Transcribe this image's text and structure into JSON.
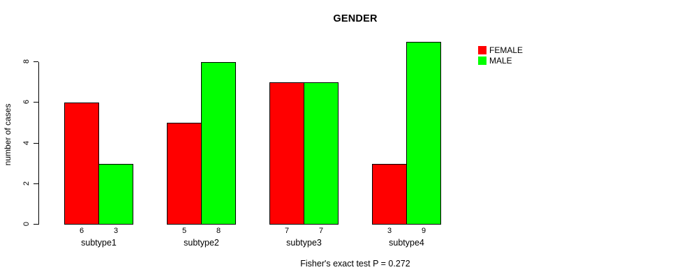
{
  "chart_data": {
    "type": "bar",
    "title": "GENDER",
    "xlabel": "",
    "ylabel": "number of cases",
    "categories": [
      "subtype1",
      "subtype2",
      "subtype3",
      "subtype4"
    ],
    "series": [
      {
        "name": "FEMALE",
        "color": "#ff0000",
        "values": [
          6,
          5,
          7,
          3
        ]
      },
      {
        "name": "MALE",
        "color": "#00ff00",
        "values": [
          3,
          8,
          7,
          9
        ]
      }
    ],
    "bar_value_labels": [
      [
        "6",
        "3"
      ],
      [
        "5",
        "8"
      ],
      [
        "7",
        "7"
      ],
      [
        "3",
        "9"
      ]
    ],
    "yticks": [
      0,
      2,
      4,
      6,
      8
    ],
    "ylim": [
      0,
      9
    ],
    "grid": false,
    "legend_position": "top-right",
    "annotation": "Fisher's exact test P = 0.272",
    "bar_border_color": "#000000",
    "background_color": "#ffffff"
  }
}
